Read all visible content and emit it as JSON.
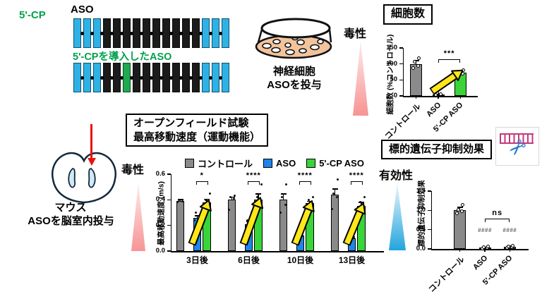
{
  "schematic": {
    "five_cp_label": "5'-CP",
    "aso_label": "ASO",
    "cp_aso_label": "5'-CPを導入したASO",
    "aso_pattern": [
      "blue",
      "blue",
      "blue",
      "black",
      "black",
      "black",
      "black",
      "black",
      "black",
      "black",
      "black",
      "black",
      "black",
      "blue",
      "blue",
      "blue"
    ],
    "cp_pattern": [
      "blue",
      "blue",
      "blue",
      "black",
      "black",
      "green",
      "black",
      "black",
      "black",
      "black",
      "black",
      "black",
      "black",
      "blue",
      "blue",
      "blue"
    ],
    "colors": {
      "blue": "#2eb2e6",
      "black": "#1b1b1b",
      "green": "#1faa50"
    }
  },
  "cell_culture": {
    "line1": "神経細胞",
    "line2": "ASOを投与"
  },
  "mouse": {
    "line1": "マウス",
    "line2": "ASOを脳室内投与"
  },
  "side_labels": {
    "toxicity_cells": "毒性",
    "toxicity_mouse": "毒性",
    "efficacy": "有効性"
  },
  "panel_titles": {
    "cell_count": "細胞数",
    "openfield_line1": "オープンフィールド試験",
    "openfield_line2": "最高移動速度（運動機能）",
    "suppression": "標的遺伝子抑制効果"
  },
  "legend": {
    "items": [
      {
        "label": "コントロール",
        "color": "#8a8a8a"
      },
      {
        "label": "ASO",
        "color": "#1e86e8"
      },
      {
        "label": "5'-CP ASO",
        "color": "#39d439"
      }
    ]
  },
  "chart_data": [
    {
      "id": "cell_count",
      "type": "bar",
      "title": "細胞数",
      "ylabel": "細胞数 (%コントロール)",
      "ylim": [
        0,
        150
      ],
      "yticks": [
        "0",
        "50",
        "100",
        "150"
      ],
      "categories": [
        "コントロール",
        "ASO",
        "5'-CP ASO"
      ],
      "values": [
        100,
        5,
        73
      ],
      "errors": [
        10,
        2,
        5
      ],
      "colors": [
        "#8a8a8a",
        "#1e86e8",
        "#39d439"
      ],
      "points": [
        [
          88,
          93,
          107,
          117
        ],
        [
          3,
          6,
          9
        ],
        [
          64,
          70,
          75,
          81
        ]
      ],
      "significance": [
        {
          "between": [
            1,
            2
          ],
          "label": "***",
          "y": 115
        }
      ],
      "arrows": [
        {
          "from": 1,
          "to": 2
        }
      ]
    },
    {
      "id": "movement",
      "type": "grouped_bar",
      "title": "オープンフィールド試験 最高移動速度（運動機能）",
      "ylabel": "最高移動速度 (m/s)",
      "ylim": [
        0,
        0.6
      ],
      "yticks": [
        "0.0",
        "0.2",
        "0.4",
        "0.6"
      ],
      "categories": [
        "3日後",
        "6日後",
        "10日後",
        "13日後"
      ],
      "series": [
        {
          "name": "コントロール",
          "color": "#8a8a8a",
          "values": [
            0.39,
            0.4,
            0.4,
            0.44
          ],
          "errors": [
            0.012,
            0.02,
            0.045,
            0.045
          ],
          "points": [
            [
              0.38,
              0.39,
              0.4
            ],
            [
              0.32,
              0.41,
              0.42,
              0.43
            ],
            [
              0.3,
              0.36,
              0.42,
              0.52
            ],
            [
              0.33,
              0.42,
              0.45,
              0.56
            ]
          ]
        },
        {
          "name": "ASO",
          "color": "#1e86e8",
          "values": [
            0.26,
            0.21,
            0.12,
            0.1
          ],
          "errors": [
            0.015,
            0.02,
            0.015,
            0.012
          ],
          "points": [
            [
              0.24,
              0.26,
              0.3
            ],
            [
              0.17,
              0.19,
              0.24,
              0.3
            ],
            [
              0.07,
              0.12,
              0.14
            ],
            [
              0.08,
              0.1,
              0.12
            ]
          ]
        },
        {
          "name": "5'-CP ASO",
          "color": "#39d439",
          "values": [
            0.38,
            0.4,
            0.375,
            0.355
          ],
          "errors": [
            0.025,
            0.045,
            0.012,
            0.025
          ],
          "points": [
            [
              0.3,
              0.37,
              0.4,
              0.45
            ],
            [
              0.32,
              0.35,
              0.42,
              0.52
            ],
            [
              0.33,
              0.37,
              0.4,
              0.42
            ],
            [
              0.3,
              0.35,
              0.38,
              0.42
            ]
          ]
        }
      ],
      "significance": [
        {
          "group": 0,
          "between": [
            1,
            2
          ],
          "label": "*",
          "y": 0.545
        },
        {
          "group": 1,
          "between": [
            1,
            2
          ],
          "label": "****",
          "y": 0.545
        },
        {
          "group": 2,
          "between": [
            1,
            2
          ],
          "label": "****",
          "y": 0.545
        },
        {
          "group": 3,
          "between": [
            1,
            2
          ],
          "label": "****",
          "y": 0.545
        }
      ],
      "arrows": [
        {
          "group": 0,
          "from": 1,
          "to": 2
        },
        {
          "group": 1,
          "from": 1,
          "to": 2
        },
        {
          "group": 2,
          "from": 1,
          "to": 2
        },
        {
          "group": 3,
          "from": 1,
          "to": 2
        }
      ]
    },
    {
      "id": "suppression",
      "type": "bar",
      "title": "標的遺伝子抑制効果",
      "ylabel": "標的遺伝子抑制効果",
      "ylim": [
        0,
        1.5
      ],
      "yticks": [
        "0.0",
        "0.5",
        "1.0",
        "1.5"
      ],
      "categories": [
        "コントロール",
        "ASO",
        "5'-CP ASO"
      ],
      "values": [
        1.0,
        0.03,
        0.05
      ],
      "errors": [
        0.08,
        0.02,
        0.02
      ],
      "colors": [
        "#8a8a8a",
        "#1e86e8",
        "#2d9e52"
      ],
      "points": [
        [
          0.92,
          0.97,
          1.02,
          1.15
        ],
        [
          0.01,
          0.03,
          0.05,
          0.07
        ],
        [
          0.02,
          0.04,
          0.06,
          0.08
        ]
      ],
      "significance": [
        {
          "between": [
            1,
            2
          ],
          "label": "ns",
          "y": 0.78
        }
      ],
      "annotations": [
        {
          "cat": 1,
          "label": "####",
          "y": 0.47
        },
        {
          "cat": 2,
          "label": "####",
          "y": 0.47
        }
      ]
    }
  ]
}
